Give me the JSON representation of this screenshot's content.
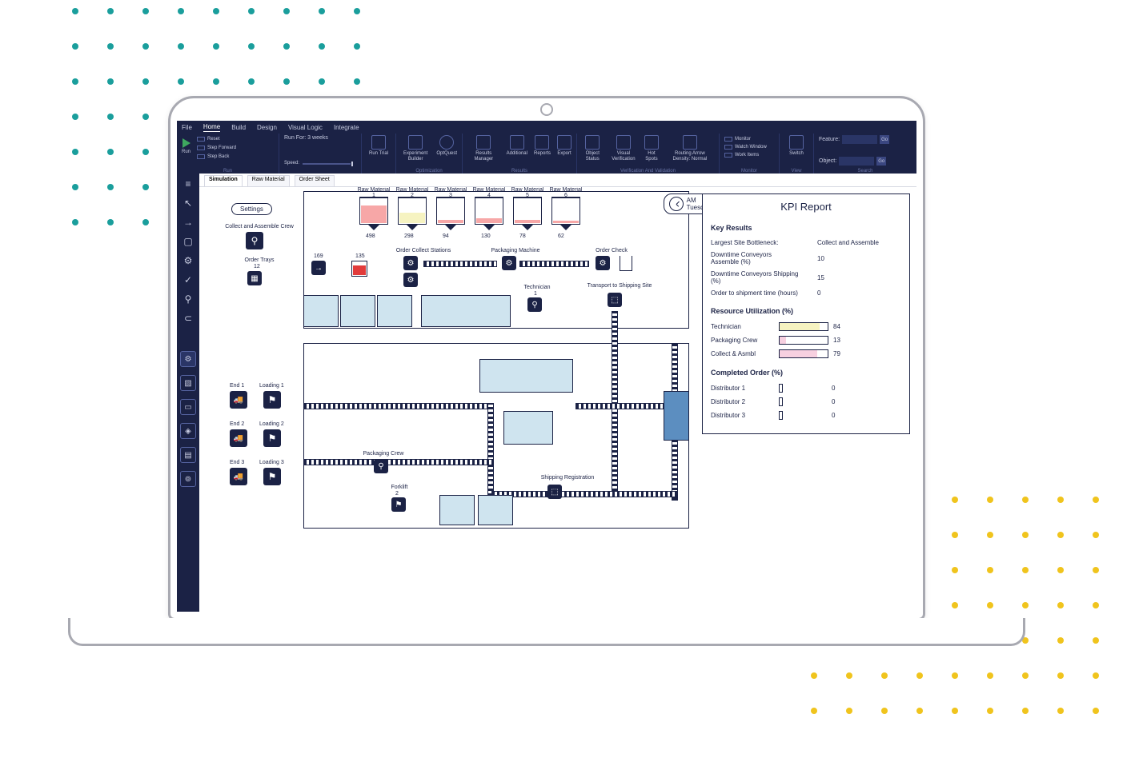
{
  "menubar": {
    "items": [
      "File",
      "Home",
      "Build",
      "Design",
      "Visual Logic",
      "Integrate"
    ],
    "active": "Home"
  },
  "ribbon": {
    "run": {
      "label": "Run",
      "play": "Run",
      "reset": "Reset",
      "stepfwd": "Step Forward",
      "stepback": "Step Back",
      "runfor": "Run For: 3 weeks",
      "speed": "Speed:"
    },
    "runtrial": "Run Trial",
    "optimization": {
      "label": "Optimization",
      "exp": "Experiment Builder",
      "opt": "OptQuest"
    },
    "results": {
      "label": "Results",
      "mgr": "Results Manager",
      "add": "Additional",
      "rep": "Reports",
      "exp": "Export"
    },
    "verify": {
      "label": "Verification And Validation",
      "obj": "Object Status",
      "vis": "Visual Verification",
      "hot": "Hot Spots",
      "route": "Routing Arrow Density: Normal"
    },
    "monitor": {
      "label": "Monitor",
      "m": "Monitor",
      "w": "Watch Window",
      "wi": "Work Items"
    },
    "view": {
      "label": "View",
      "switch": "Switch"
    },
    "search": {
      "label": "Search",
      "feature": "Feature:",
      "object": "Object:",
      "go": "Go"
    }
  },
  "tabs": {
    "items": [
      "Simulation",
      "Raw Material",
      "Order Sheet"
    ],
    "active": "Simulation"
  },
  "canvas": {
    "settings": "Settings",
    "crew_label": "Collect and Assemble Crew",
    "trays_label": "Order Trays",
    "trays_value": 12,
    "raw": [
      {
        "name": "Raw Material 1",
        "v": 498,
        "fill": 0.75,
        "color": "#f7a7a7"
      },
      {
        "name": "Raw Material 2",
        "v": 298,
        "fill": 0.45,
        "color": "#f6f3c1"
      },
      {
        "name": "Raw Material 3",
        "v": 94,
        "fill": 0.15,
        "color": "#f7a7a7"
      },
      {
        "name": "Raw Material 4",
        "v": 130,
        "fill": 0.2,
        "color": "#f7a7a7"
      },
      {
        "name": "Raw Material 5",
        "v": 78,
        "fill": 0.12,
        "color": "#f7a7a7"
      },
      {
        "name": "Raw Material 6",
        "v": 62,
        "fill": 0.1,
        "color": "#f7a7a7"
      }
    ],
    "ocs": "Order Collect Stations",
    "pkg": "Packaging Machine",
    "ochk": "Order Check",
    "tship": "Transport to Shipping Site",
    "tech": "Technician",
    "tech_v": 1,
    "pkg_crew": "Packaging Crew",
    "forklift": "Forklift",
    "forklift_v": 2,
    "shipreg": "Shipping Registration",
    "ends": [
      {
        "e": "End 1",
        "l": "Loading 1"
      },
      {
        "e": "End 2",
        "l": "Loading 2"
      },
      {
        "e": "End 3",
        "l": "Loading 3"
      }
    ],
    "clock": {
      "ampm": "AM",
      "day": "Tuesday"
    },
    "src_v": 169,
    "tank_v": 135,
    "tank_color": "#e23b3b",
    "colors": {
      "room": "#cfe4ef",
      "dark": "#1b2245"
    }
  },
  "kpi": {
    "title": "KPI Report",
    "key_results_h": "Key Results",
    "key": [
      {
        "l": "Largest Site Bottleneck:",
        "v": "Collect and Assemble"
      },
      {
        "l": "Downtime Conveyors Assemble (%)",
        "v": "10"
      },
      {
        "l": "Downtime Conveyors Shipping (%)",
        "v": "15"
      },
      {
        "l": "Order to shipment time (hours)",
        "v": "0"
      }
    ],
    "ru_h": "Resource Utilization (%)",
    "ru": [
      {
        "l": "Technician",
        "v": 84,
        "color": "#f6f3c1"
      },
      {
        "l": "Packaging Crew",
        "v": 13,
        "color": "#f7d0e0"
      },
      {
        "l": "Collect & Asmbl",
        "v": 79,
        "color": "#f7d0e0"
      }
    ],
    "co_h": "Completed Order (%)",
    "co": [
      {
        "l": "Distributor 1",
        "v": 0
      },
      {
        "l": "Distributor 2",
        "v": 0
      },
      {
        "l": "Distributor 3",
        "v": 0
      }
    ]
  }
}
